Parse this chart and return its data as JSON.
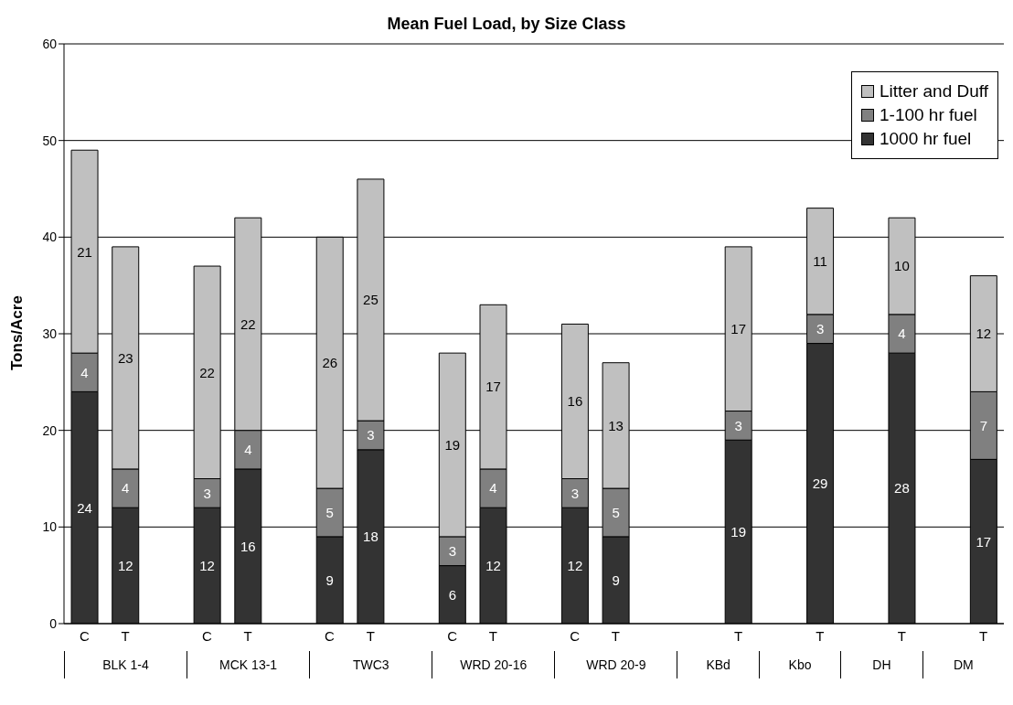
{
  "chart_data": {
    "type": "bar",
    "title": "Mean Fuel Load, by Size Class",
    "ylabel": "Tons/Acre",
    "stacked": true,
    "categories": [
      "C",
      "T",
      null,
      "C",
      "T",
      null,
      "C",
      "T",
      null,
      "C",
      "T",
      null,
      "C",
      "T",
      null,
      null,
      "T",
      null,
      "T",
      null,
      "T",
      null,
      "T"
    ],
    "series": [
      {
        "name": "1000 hr fuel",
        "color": "#333333",
        "values": [
          24,
          12,
          null,
          12,
          16,
          null,
          9,
          18,
          null,
          6,
          12,
          null,
          12,
          9,
          null,
          null,
          19,
          null,
          29,
          null,
          28,
          null,
          17
        ]
      },
      {
        "name": "1-100 hr fuel",
        "color": "#808080",
        "values": [
          4,
          4,
          null,
          3,
          4,
          null,
          5,
          3,
          null,
          3,
          4,
          null,
          3,
          5,
          null,
          null,
          3,
          null,
          3,
          null,
          4,
          null,
          7
        ]
      },
      {
        "name": "Litter and Duff",
        "color": "#c0c0c0",
        "values": [
          21,
          23,
          null,
          22,
          22,
          null,
          26,
          25,
          null,
          19,
          17,
          null,
          16,
          13,
          null,
          null,
          17,
          null,
          11,
          null,
          10,
          null,
          12
        ]
      }
    ],
    "ylim": [
      0,
      60
    ],
    "yticks": [
      0,
      10,
      20,
      30,
      40,
      50,
      60
    ],
    "grid": "y",
    "legend": "top right",
    "data_labels": true,
    "annotations": [
      "BLK 1-4",
      "MCK 13-1",
      "TWC3",
      "WRD 20-16",
      "WRD 20-9",
      "KBd",
      "Kbo",
      "DH",
      "DM"
    ]
  }
}
